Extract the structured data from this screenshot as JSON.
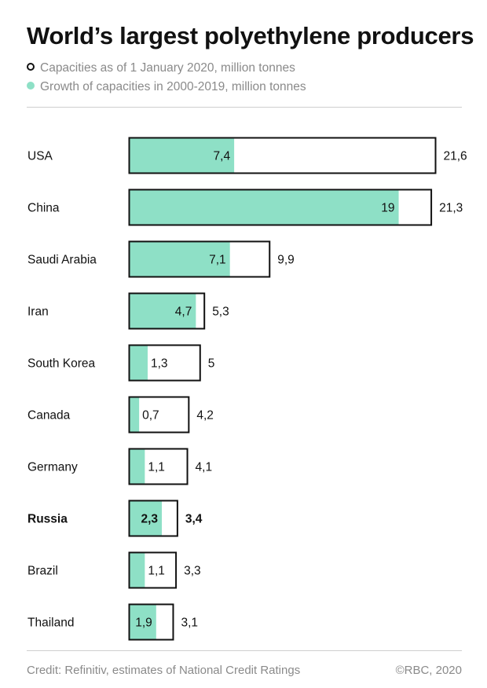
{
  "title": "World’s largest polyethylene producers",
  "legend": [
    {
      "label": "Capacities as of 1 January 2020, million tonnes",
      "marker": "hollow-circle-icon"
    },
    {
      "label": "Growth of capacities in 2000-2019, million tonnes",
      "marker": "filled-circle-icon"
    }
  ],
  "colors": {
    "growth": "#8ee0c6",
    "capacity_fill": "#ffffff",
    "outline": "#111111",
    "muted_text": "#8a8a8a"
  },
  "chart_data": {
    "type": "bar",
    "orientation": "horizontal",
    "layout": "overlapping",
    "categories": [
      "USA",
      "China",
      "Saudi Arabia",
      "Iran",
      "South Korea",
      "Canada",
      "Germany",
      "Russia",
      "Brazil",
      "Thailand"
    ],
    "highlighted_category": "Russia",
    "series": [
      {
        "name": "Capacities as of 1 January 2020, million tonnes",
        "values": [
          21.6,
          21.3,
          9.9,
          5.3,
          5,
          4.2,
          4.1,
          3.4,
          3.3,
          3.1
        ],
        "labels": [
          "21,6",
          "21,3",
          "9,9",
          "5,3",
          "5",
          "4,2",
          "4,1",
          "3,4",
          "3,3",
          "3,1"
        ]
      },
      {
        "name": "Growth of capacities in 2000-2019, million tonnes",
        "values": [
          7.4,
          19,
          7.1,
          4.7,
          1.3,
          0.7,
          1.1,
          2.3,
          1.1,
          1.9
        ],
        "labels": [
          "7,4",
          "19",
          "7,1",
          "4,7",
          "1,3",
          "0,7",
          "1,1",
          "2,3",
          "1,1",
          "1,9"
        ]
      }
    ],
    "xlim": [
      0,
      21.6
    ],
    "grid": false,
    "axis_visible": false,
    "legend_position": "top-left"
  },
  "footer": {
    "credit": "Credit: Refinitiv, estimates of National Credit Ratings",
    "copyright": "©RBC, 2020"
  }
}
